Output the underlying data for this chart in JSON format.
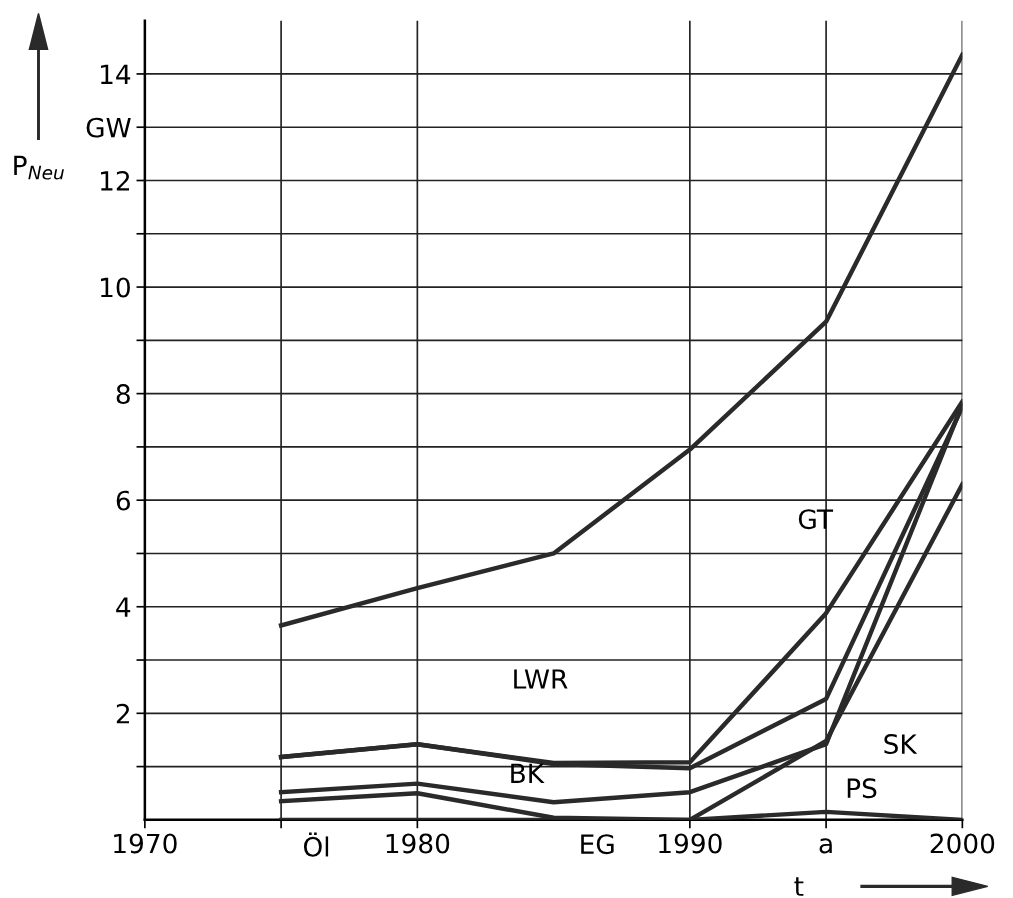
{
  "chart_data": {
    "type": "line",
    "xlabel": "t",
    "ylabel": "P$_{Neu}$",
    "x": [
      1975,
      1980,
      1985,
      1990,
      1995,
      2000
    ],
    "series": [
      {
        "color": "#2a2a2a",
        "values": [
          3.65,
          4.35,
          5.0,
          6.95,
          9.35,
          14.36
        ]
      },
      {
        "color": "#2a2a2a",
        "values": [
          1.18,
          1.42,
          1.07,
          1.08,
          3.88,
          7.85
        ]
      },
      {
        "color": "#2a2a2a",
        "values": [
          1.18,
          1.42,
          1.05,
          0.97,
          2.27,
          7.75
        ]
      },
      {
        "color": "#2a2a2a",
        "values": [
          0.52,
          0.68,
          0.33,
          0.52,
          1.42,
          7.8
        ]
      },
      {
        "color": "#2a2a2a",
        "values": [
          0.35,
          0.5,
          0.04,
          0,
          1.48,
          6.3
        ]
      },
      {
        "color": "#2a2a2a",
        "values": [
          0,
          0,
          0,
          0,
          0.15,
          0
        ]
      }
    ],
    "xlim": [
      1970,
      2000
    ],
    "ylim": [
      0,
      15
    ],
    "xticks": [
      1970,
      {
        "value": 1975,
        "label": null
      },
      1980,
      1990,
      {
        "value": 1995,
        "label": "a"
      },
      2000
    ],
    "yticks": [
      {
        "value": 1,
        "label": null
      },
      2,
      {
        "value": 3,
        "label": null
      },
      4,
      {
        "value": 5,
        "label": null
      },
      6,
      {
        "value": 7,
        "label": null
      },
      8,
      {
        "value": 9,
        "label": null
      },
      10,
      {
        "value": 11,
        "label": null
      },
      12,
      {
        "value": 13,
        "label": "GW"
      },
      14
    ],
    "grid": true,
    "marker": "none",
    "line_style": "solid",
    "annotations": [
      "LWR",
      "BK",
      "GT",
      "SK",
      "PS",
      "Öl",
      "EG"
    ]
  }
}
